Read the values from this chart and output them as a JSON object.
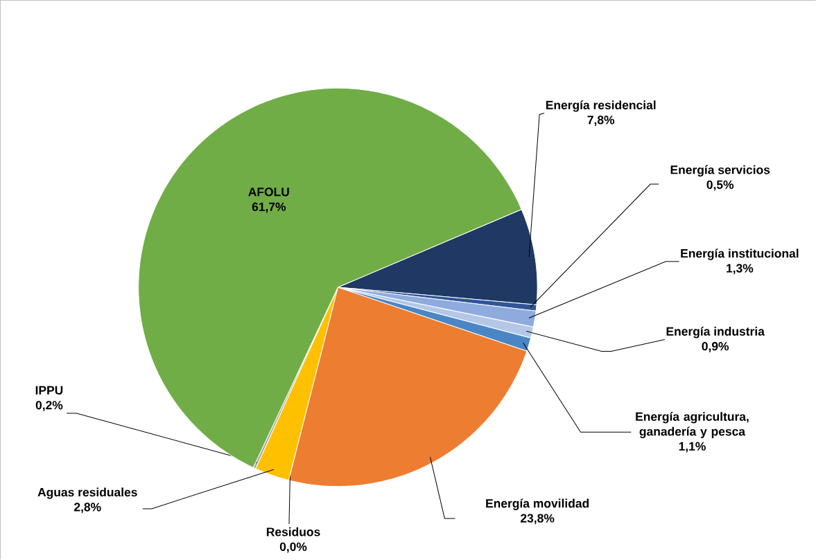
{
  "chart_data": {
    "type": "pie",
    "categories": [
      "Energía residencial",
      "Energía servicios",
      "Energía institucional",
      "Energía industria",
      "Energía agricultura, ganadería y pesca",
      "Energía movilidad",
      "Residuos",
      "Aguas residuales",
      "IPPU",
      "AFOLU"
    ],
    "values": [
      7.8,
      0.5,
      1.3,
      0.9,
      1.1,
      23.8,
      0.0,
      2.8,
      0.2,
      61.7
    ],
    "value_labels": [
      "7,8%",
      "0,5%",
      "1,3%",
      "0,9%",
      "1,1%",
      "23,8%",
      "0,0%",
      "2,8%",
      "0,2%",
      "61,7%"
    ],
    "colors": [
      "#203864",
      "#2f5597",
      "#8faadc",
      "#b4c7e7",
      "#4a86c5",
      "#ed7d31",
      "#7f7f7f",
      "#ffc000",
      "#a5a5a5",
      "#70ad47"
    ]
  }
}
